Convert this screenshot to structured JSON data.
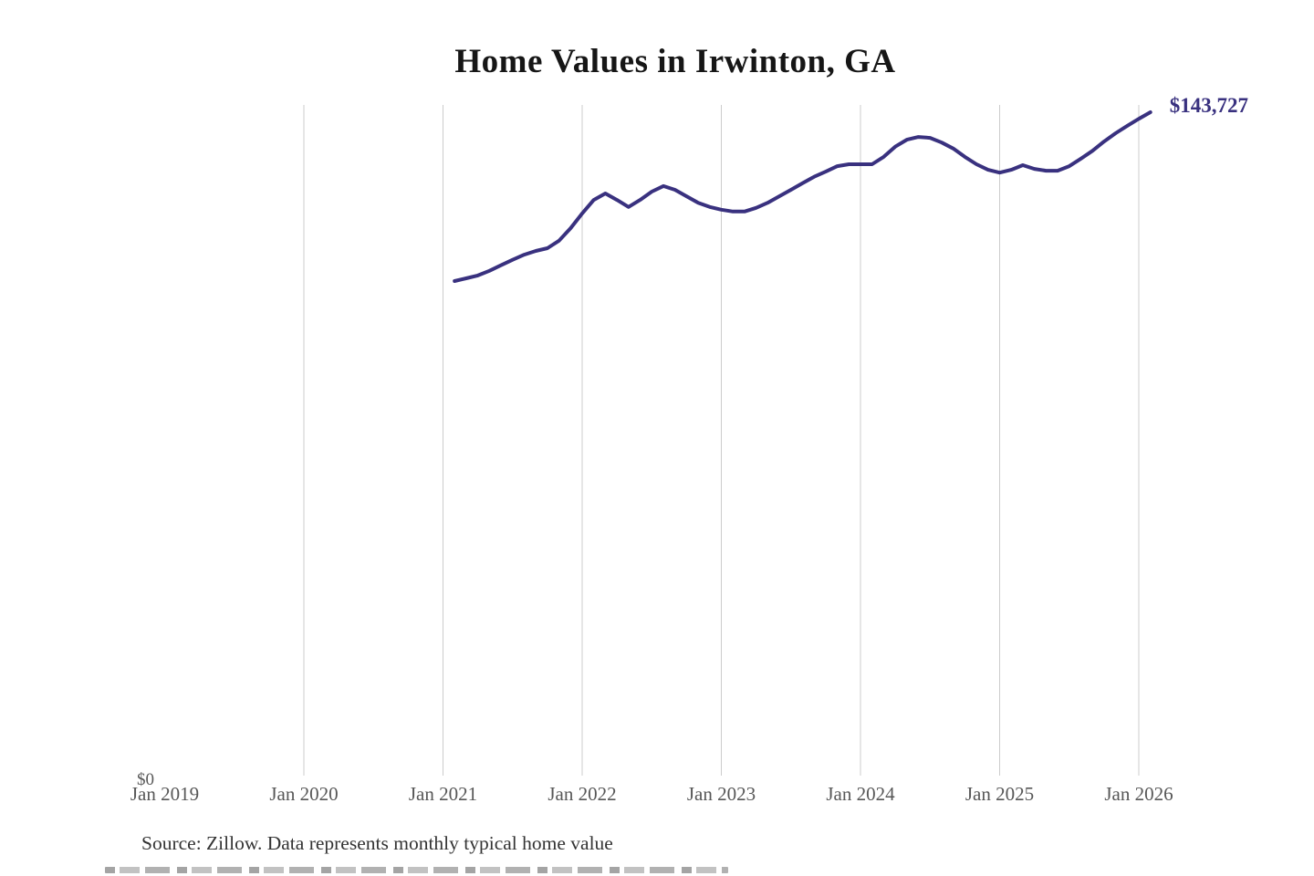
{
  "header": {
    "title": "Home Values in Irwinton, GA"
  },
  "chart_data": {
    "type": "line",
    "title": "Home Values in Irwinton, GA",
    "series_name": "Monthly typical home value",
    "x": [
      "2021-02",
      "2021-03",
      "2021-04",
      "2021-05",
      "2021-06",
      "2021-07",
      "2021-08",
      "2021-09",
      "2021-10",
      "2021-11",
      "2021-12",
      "2022-01",
      "2022-02",
      "2022-03",
      "2022-04",
      "2022-05",
      "2022-06",
      "2022-07",
      "2022-08",
      "2022-09",
      "2022-10",
      "2022-11",
      "2022-12",
      "2023-01",
      "2023-02",
      "2023-03",
      "2023-04",
      "2023-05",
      "2023-06",
      "2023-07",
      "2023-08",
      "2023-09",
      "2023-10",
      "2023-11",
      "2023-12",
      "2024-01",
      "2024-02",
      "2024-03",
      "2024-04",
      "2024-05",
      "2024-06",
      "2024-07",
      "2024-08",
      "2024-09",
      "2024-10",
      "2024-11",
      "2024-12",
      "2025-01",
      "2025-02",
      "2025-03",
      "2025-04",
      "2025-05",
      "2025-06",
      "2025-07",
      "2025-08",
      "2025-09",
      "2025-10",
      "2025-11",
      "2025-12",
      "2026-01",
      "2026-02"
    ],
    "values": [
      107300,
      107900,
      108500,
      109500,
      110700,
      111900,
      113000,
      113800,
      114400,
      116000,
      118700,
      121900,
      124800,
      126200,
      124800,
      123300,
      124800,
      126600,
      127800,
      127000,
      125600,
      124200,
      123300,
      122700,
      122300,
      122300,
      123100,
      124200,
      125600,
      127000,
      128400,
      129800,
      130900,
      132100,
      132500,
      132500,
      132500,
      134100,
      136300,
      137800,
      138400,
      138200,
      137200,
      135900,
      134100,
      132500,
      131300,
      130700,
      131300,
      132300,
      131500,
      131100,
      131100,
      132100,
      133700,
      135400,
      137400,
      139200,
      140800,
      142300,
      143727
    ],
    "x_ticks": [
      {
        "label": "Jan 2019",
        "year": 2019,
        "gridline": false
      },
      {
        "label": "Jan 2020",
        "year": 2020,
        "gridline": true
      },
      {
        "label": "Jan 2021",
        "year": 2021,
        "gridline": true
      },
      {
        "label": "Jan 2022",
        "year": 2022,
        "gridline": true
      },
      {
        "label": "Jan 2023",
        "year": 2023,
        "gridline": true
      },
      {
        "label": "Jan 2024",
        "year": 2024,
        "gridline": true
      },
      {
        "label": "Jan 2025",
        "year": 2025,
        "gridline": true
      },
      {
        "label": "Jan 2026",
        "year": 2026,
        "gridline": true
      }
    ],
    "ylim": [
      0,
      143727
    ],
    "y_zero_label": "$0",
    "latest_value_label": "$143,727",
    "line_color": "#39317f",
    "gridline_color": "#cccccc",
    "grid": "vertical-only",
    "legend": "none"
  },
  "footer": {
    "source_text": "Source: Zillow. Data represents monthly typical home value"
  }
}
